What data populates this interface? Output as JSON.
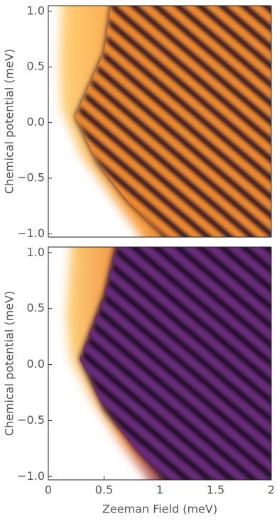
{
  "chart_data": [
    {
      "type": "heatmap",
      "ylabel": "Chemical potential (meV)",
      "xlim": [
        0,
        2
      ],
      "ylim": [
        -1.03,
        1.05
      ],
      "yticks": [
        {
          "value": 1,
          "label": "1.0"
        },
        {
          "value": 0.5,
          "label": "0.5"
        },
        {
          "value": 0,
          "label": "0.0"
        },
        {
          "value": -0.5,
          "label": "−0.5"
        },
        {
          "value": -1,
          "label": "−1.0"
        }
      ]
    },
    {
      "type": "heatmap",
      "ylabel": "Chemical potential (meV)",
      "xlabel": "Zeeman Field (meV)",
      "xlim": [
        0,
        2
      ],
      "ylim": [
        -1.03,
        1.05
      ],
      "xticks": [
        0,
        0.5,
        1,
        1.5,
        2
      ],
      "yticks": [
        {
          "value": 1,
          "label": "1.0"
        },
        {
          "value": 0.5,
          "label": "0.5"
        },
        {
          "value": 0,
          "label": "0.0"
        },
        {
          "value": -0.5,
          "label": "−0.5"
        },
        {
          "value": -1,
          "label": "−1.0"
        }
      ]
    }
  ]
}
